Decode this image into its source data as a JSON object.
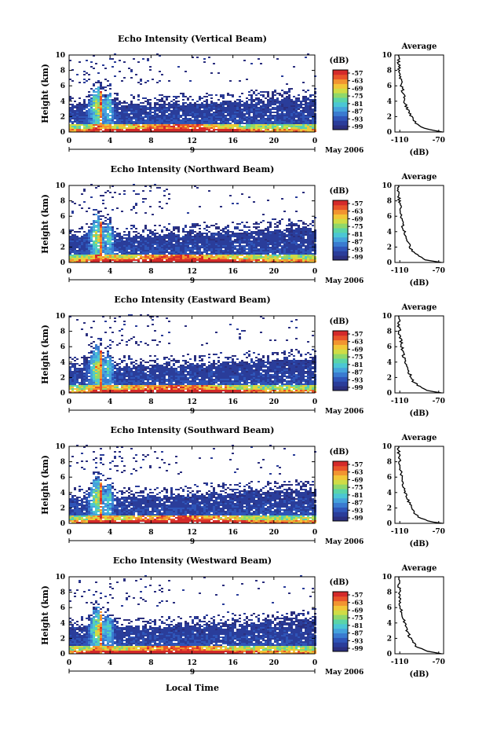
{
  "figure": {
    "xlabel": "Local Time",
    "date_label": "May 2006",
    "day_marker": "9"
  },
  "colorbar": {
    "unit_label": "(dB)",
    "ticks": [
      "-57",
      "-63",
      "-69",
      "-75",
      "-81",
      "-87",
      "-93",
      "-99"
    ],
    "colors": [
      "#2b2f7e",
      "#2a3d9a",
      "#2f55b8",
      "#3a7bd0",
      "#45a2dc",
      "#4bc6d4",
      "#5ad4a8",
      "#8fd86a",
      "#d0dc45",
      "#f2c637",
      "#f29430",
      "#e8542a",
      "#d42a2a"
    ]
  },
  "chart_data": [
    {
      "type": "heatmap",
      "title": "Echo Intensity (Vertical Beam)",
      "ylabel": "Height (km)",
      "x_ticks": [
        "0",
        "4",
        "8",
        "12",
        "16",
        "20",
        "0"
      ],
      "y_ticks": [
        "0",
        "2",
        "4",
        "6",
        "8",
        "10"
      ],
      "xlim": [
        0,
        24
      ],
      "ylim": [
        0,
        10
      ],
      "inset": {
        "title": "Average",
        "xlabel": "(dB)",
        "x_ticks": [
          "-110",
          "-70"
        ],
        "y_ticks": [
          "0",
          "2",
          "4",
          "6",
          "8",
          "10"
        ],
        "xlim": [
          -115,
          -65
        ],
        "ylim": [
          0,
          10
        ],
        "profile_x": [
          -66,
          -80,
          -90,
          -96,
          -100,
          -104,
          -106,
          -108,
          -110,
          -111,
          -111
        ],
        "profile_y": [
          0,
          0.3,
          0.8,
          1.5,
          2.5,
          3.5,
          4.8,
          6.0,
          7.5,
          8.8,
          10
        ]
      }
    },
    {
      "type": "heatmap",
      "title": "Echo Intensity (Northward Beam)",
      "ylabel": "Height (km)",
      "x_ticks": [
        "0",
        "4",
        "8",
        "12",
        "16",
        "20",
        "0"
      ],
      "y_ticks": [
        "0",
        "2",
        "4",
        "6",
        "8",
        "10"
      ],
      "xlim": [
        0,
        24
      ],
      "ylim": [
        0,
        10
      ],
      "inset": {
        "title": "Average",
        "xlabel": "(dB)",
        "x_ticks": [
          "-110",
          "-70"
        ],
        "y_ticks": [
          "0",
          "2",
          "4",
          "6",
          "8",
          "10"
        ],
        "xlim": [
          -115,
          -65
        ],
        "ylim": [
          0,
          10
        ],
        "profile_x": [
          -67,
          -82,
          -91,
          -97,
          -101,
          -104,
          -107,
          -109,
          -110,
          -111,
          -111
        ],
        "profile_y": [
          0,
          0.3,
          0.8,
          1.5,
          2.5,
          3.5,
          4.8,
          6.0,
          7.5,
          8.8,
          10
        ]
      }
    },
    {
      "type": "heatmap",
      "title": "Echo Intensity (Eastward Beam)",
      "ylabel": "Height (km)",
      "x_ticks": [
        "0",
        "4",
        "8",
        "12",
        "16",
        "20",
        "0"
      ],
      "y_ticks": [
        "0",
        "2",
        "4",
        "6",
        "8",
        "10"
      ],
      "xlim": [
        0,
        24
      ],
      "ylim": [
        0,
        10
      ],
      "inset": {
        "title": "Average",
        "xlabel": "(dB)",
        "x_ticks": [
          "-110",
          "-70"
        ],
        "y_ticks": [
          "0",
          "2",
          "4",
          "6",
          "8",
          "10"
        ],
        "xlim": [
          -115,
          -65
        ],
        "ylim": [
          0,
          10
        ],
        "profile_x": [
          -67,
          -81,
          -90,
          -96,
          -100,
          -104,
          -106,
          -108,
          -110,
          -111,
          -111
        ],
        "profile_y": [
          0,
          0.3,
          0.8,
          1.5,
          2.5,
          3.5,
          4.8,
          6.0,
          7.5,
          8.8,
          10
        ]
      }
    },
    {
      "type": "heatmap",
      "title": "Echo Intensity (Southward Beam)",
      "ylabel": "Height (km)",
      "x_ticks": [
        "0",
        "4",
        "8",
        "12",
        "16",
        "20",
        "0"
      ],
      "y_ticks": [
        "0",
        "2",
        "4",
        "6",
        "8",
        "10"
      ],
      "xlim": [
        0,
        24
      ],
      "ylim": [
        0,
        10
      ],
      "inset": {
        "title": "Average",
        "xlabel": "(dB)",
        "x_ticks": [
          "-110",
          "-70"
        ],
        "y_ticks": [
          "0",
          "2",
          "4",
          "6",
          "8",
          "10"
        ],
        "xlim": [
          -115,
          -65
        ],
        "ylim": [
          0,
          10
        ],
        "profile_x": [
          -66,
          -81,
          -90,
          -96,
          -100,
          -103,
          -106,
          -108,
          -110,
          -111,
          -111
        ],
        "profile_y": [
          0,
          0.3,
          0.8,
          1.5,
          2.5,
          3.5,
          4.8,
          6.0,
          7.5,
          8.8,
          10
        ]
      }
    },
    {
      "type": "heatmap",
      "title": "Echo Intensity (Westward Beam)",
      "ylabel": "Height (km)",
      "x_ticks": [
        "0",
        "4",
        "8",
        "12",
        "16",
        "20",
        "0"
      ],
      "y_ticks": [
        "0",
        "2",
        "4",
        "6",
        "8",
        "10"
      ],
      "xlim": [
        0,
        24
      ],
      "ylim": [
        0,
        10
      ],
      "inset": {
        "title": "Average",
        "xlabel": "(dB)",
        "x_ticks": [
          "-110",
          "-70"
        ],
        "y_ticks": [
          "0",
          "2",
          "4",
          "6",
          "8",
          "10"
        ],
        "xlim": [
          -115,
          -65
        ],
        "ylim": [
          0,
          10
        ],
        "profile_x": [
          -67,
          -82,
          -91,
          -97,
          -101,
          -104,
          -107,
          -109,
          -110,
          -111,
          -111
        ],
        "profile_y": [
          0,
          0.3,
          0.8,
          1.5,
          2.5,
          3.5,
          4.8,
          6.0,
          7.5,
          8.8,
          10
        ]
      }
    }
  ]
}
